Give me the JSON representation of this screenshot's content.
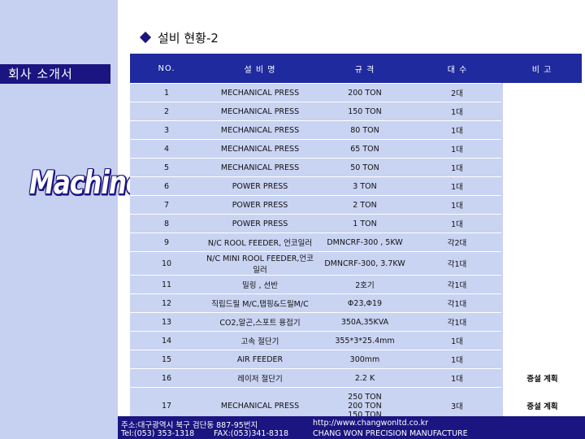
{
  "sidebar": {
    "label": "회사 소개서",
    "logo_text": "Machine"
  },
  "title": "설비 현황-2",
  "table": {
    "headers": [
      "NO.",
      "설 비 명",
      "규 격",
      "대 수",
      "비 고"
    ],
    "rows": [
      {
        "no": "1",
        "name": "MECHANICAL PRESS",
        "spec": "200 TON",
        "count": "2대",
        "note": ""
      },
      {
        "no": "2",
        "name": "MECHANICAL PRESS",
        "spec": "150 TON",
        "count": "1대",
        "note": ""
      },
      {
        "no": "3",
        "name": "MECHANICAL PRESS",
        "spec": "80 TON",
        "count": "1대",
        "note": ""
      },
      {
        "no": "4",
        "name": "MECHANICAL PRESS",
        "spec": "65 TON",
        "count": "1대",
        "note": ""
      },
      {
        "no": "5",
        "name": "MECHANICAL PRESS",
        "spec": "50 TON",
        "count": "1대",
        "note": ""
      },
      {
        "no": "6",
        "name": "POWER PRESS",
        "spec": "3 TON",
        "count": "1대",
        "note": ""
      },
      {
        "no": "7",
        "name": "POWER PRESS",
        "spec": "2 TON",
        "count": "1대",
        "note": ""
      },
      {
        "no": "8",
        "name": "POWER PRESS",
        "spec": "1 TON",
        "count": "1대",
        "note": ""
      },
      {
        "no": "9",
        "name": "N/C ROOL FEEDER, 언코일러",
        "spec": "DMNCRF-300 , 5KW",
        "count": "각2대",
        "note": ""
      },
      {
        "no": "10",
        "name": "N/C MINI ROOL FEEDER,언코일러",
        "spec": "DMNCRF-300, 3.7KW",
        "count": "각1대",
        "note": ""
      },
      {
        "no": "11",
        "name": "밀링 , 선반",
        "spec": "2호기",
        "count": "각1대",
        "note": ""
      },
      {
        "no": "12",
        "name": "직립드릴 M/C,탭핑&드릴M/C",
        "spec": "Φ23,Φ19",
        "count": "각1대",
        "note": ""
      },
      {
        "no": "13",
        "name": "CO2,알곤,스포트 용접기",
        "spec": "350A,35KVA",
        "count": "각1대",
        "note": ""
      },
      {
        "no": "14",
        "name": "고속 절단기",
        "spec": "355*3*25.4mm",
        "count": "1대",
        "note": ""
      },
      {
        "no": "15",
        "name": "AIR FEEDER",
        "spec": "300mm",
        "count": "1대",
        "note": ""
      },
      {
        "no": "16",
        "name": "레이저 절단기",
        "spec": "2.2 K",
        "count": "1대",
        "note": "증설 계획"
      },
      {
        "no": "17",
        "name": "MECHANICAL PRESS",
        "spec": "250 TON\n200 TON\n150 TON",
        "count": "3대",
        "note": "증설 계획"
      }
    ]
  },
  "footer": {
    "address": "주소:대구광역시 북구 검단동 887-95번지",
    "tel": "Tel:(053) 353-1318",
    "fax": "FAX:(053)341-8318",
    "website": "http://www.changwonltd.co.kr",
    "company": "CHANG WON PRECISION MANUFACTURE"
  }
}
